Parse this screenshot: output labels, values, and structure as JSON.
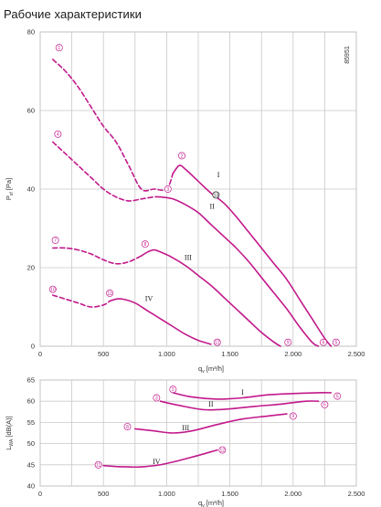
{
  "title": "Рабочие характеристики",
  "doc_number": "85951",
  "colors": {
    "curve": "#c2188b",
    "grid": "#c9c9c9",
    "text": "#333333"
  },
  "chart_data": [
    {
      "type": "line",
      "xlabel_main": "q",
      "xlabel_sub": "v",
      "xlabel_unit": "[m³/h]",
      "ylabel_main": "P",
      "ylabel_sub": "sf",
      "ylabel_unit": "[Pa]",
      "xlim": [
        0,
        2500
      ],
      "ylim": [
        0,
        80
      ],
      "x_ticks": [
        "0",
        "500",
        "1.000",
        "1.500",
        "2.000",
        "2.500"
      ],
      "y_ticks": [
        "0",
        "20",
        "40",
        "60",
        "80"
      ],
      "grid": true,
      "series": [
        {
          "name": "I",
          "style": "solid",
          "x": [
            1050,
            1100,
            1150,
            1250,
            1350,
            1450,
            1550,
            1650,
            1750,
            1850,
            1950,
            2050,
            2150,
            2250,
            2300
          ],
          "y": [
            44,
            46,
            45,
            42,
            39,
            36.5,
            33,
            29,
            25,
            21,
            17,
            12,
            7,
            2,
            0
          ]
        },
        {
          "name": "I-ext",
          "style": "dash",
          "x": [
            100,
            200,
            300,
            400,
            500,
            600,
            700,
            800,
            900,
            1000,
            1050
          ],
          "y": [
            73,
            70,
            66,
            61,
            56,
            52,
            46,
            40,
            40,
            40,
            44
          ]
        },
        {
          "name": "II",
          "style": "solid",
          "x": [
            950,
            1050,
            1150,
            1250,
            1350,
            1450,
            1550,
            1650,
            1750,
            1850,
            1950,
            2050,
            2150,
            2200
          ],
          "y": [
            38,
            37.5,
            36,
            34,
            31,
            28,
            25,
            21.5,
            17.5,
            13.5,
            9.5,
            5,
            1,
            0
          ]
        },
        {
          "name": "II-ext",
          "style": "dash",
          "x": [
            100,
            200,
            300,
            400,
            500,
            600,
            700,
            800,
            900,
            950
          ],
          "y": [
            52,
            49,
            46,
            43,
            40,
            38,
            37,
            37.5,
            38,
            38
          ]
        },
        {
          "name": "III",
          "style": "solid",
          "x": [
            800,
            850,
            900,
            950,
            1050,
            1150,
            1250,
            1350,
            1450,
            1550,
            1650,
            1750,
            1850,
            1900
          ],
          "y": [
            23,
            24,
            24.5,
            24,
            22.5,
            20.5,
            18,
            15.5,
            12.5,
            9.5,
            6.5,
            3.5,
            1,
            0
          ]
        },
        {
          "name": "III-ext",
          "style": "dash",
          "x": [
            100,
            200,
            300,
            400,
            500,
            600,
            700,
            800
          ],
          "y": [
            25,
            25,
            24.5,
            23.5,
            22,
            21,
            21.5,
            23
          ]
        },
        {
          "name": "IV",
          "style": "solid",
          "x": [
            550,
            600,
            650,
            750,
            850,
            950,
            1050,
            1150,
            1250,
            1350
          ],
          "y": [
            11.5,
            12,
            12,
            11,
            9,
            7,
            5,
            3,
            1.5,
            0.5
          ]
        },
        {
          "name": "IV-ext",
          "style": "dash",
          "x": [
            100,
            200,
            300,
            400,
            500,
            550
          ],
          "y": [
            13,
            12,
            11,
            10,
            10.5,
            11.5
          ]
        }
      ],
      "point_labels": [
        {
          "n": "1",
          "x": 150,
          "y": 76
        },
        {
          "n": "2",
          "x": 1120,
          "y": 48.5
        },
        {
          "n": "3",
          "x": 1010,
          "y": 40
        },
        {
          "n": "4",
          "x": 140,
          "y": 54
        },
        {
          "n": "5",
          "x": 2340,
          "y": 1
        },
        {
          "n": "6",
          "x": 2240,
          "y": 1
        },
        {
          "n": "7",
          "x": 120,
          "y": 27
        },
        {
          "n": "8",
          "x": 830,
          "y": 26
        },
        {
          "n": "9",
          "x": 1960,
          "y": 1
        },
        {
          "n": "10",
          "x": 100,
          "y": 14.5
        },
        {
          "n": "11",
          "x": 550,
          "y": 13.5
        },
        {
          "n": "12",
          "x": 1400,
          "y": 1
        },
        {
          "n": "13",
          "x": 1390,
          "y": 38.5,
          "dark": true
        }
      ],
      "roman_labels": [
        {
          "text": "I",
          "x": 1410,
          "y": 43
        },
        {
          "text": "II",
          "x": 1360,
          "y": 35
        },
        {
          "text": "III",
          "x": 1170,
          "y": 22
        },
        {
          "text": "IV",
          "x": 860,
          "y": 11.5
        }
      ]
    },
    {
      "type": "line",
      "xlabel_main": "q",
      "xlabel_sub": "v",
      "xlabel_unit": "[m³/h]",
      "ylabel_main": "L",
      "ylabel_sub": "WA",
      "ylabel_unit": "[dB(A)]",
      "xlim": [
        0,
        2500
      ],
      "ylim": [
        40,
        65
      ],
      "x_ticks": [
        "0",
        "500",
        "1.000",
        "1.500",
        "2.000",
        "2.500"
      ],
      "y_ticks": [
        "40",
        "45",
        "50",
        "55",
        "60",
        "65"
      ],
      "grid": true,
      "series": [
        {
          "name": "I",
          "style": "solid",
          "x": [
            1050,
            1200,
            1400,
            1600,
            1800,
            2000,
            2200,
            2300
          ],
          "y": [
            62,
            61,
            60.5,
            60.8,
            61.5,
            61.8,
            62,
            62
          ]
        },
        {
          "name": "II",
          "style": "solid",
          "x": [
            950,
            1100,
            1300,
            1500,
            1700,
            1900,
            2100,
            2200
          ],
          "y": [
            60,
            59,
            58,
            58.2,
            58.8,
            59.3,
            60,
            60
          ]
        },
        {
          "name": "III",
          "style": "solid",
          "x": [
            750,
            900,
            1050,
            1200,
            1400,
            1600,
            1800,
            1950
          ],
          "y": [
            53.5,
            53,
            52.5,
            53,
            54.5,
            55.8,
            56.5,
            57
          ]
        },
        {
          "name": "IV",
          "style": "solid",
          "x": [
            500,
            600,
            700,
            800,
            900,
            1000,
            1200,
            1400
          ],
          "y": [
            44.8,
            44.6,
            44.5,
            44.5,
            44.8,
            45.3,
            46.8,
            48.5
          ]
        }
      ],
      "point_labels": [
        {
          "n": "2",
          "x": 1050,
          "y": 62.8
        },
        {
          "n": "3",
          "x": 920,
          "y": 60.8
        },
        {
          "n": "5",
          "x": 2350,
          "y": 61.2
        },
        {
          "n": "6",
          "x": 2250,
          "y": 59.2
        },
        {
          "n": "8",
          "x": 690,
          "y": 54
        },
        {
          "n": "9",
          "x": 2000,
          "y": 56.5
        },
        {
          "n": "11",
          "x": 460,
          "y": 45
        },
        {
          "n": "12",
          "x": 1440,
          "y": 48.5
        }
      ],
      "roman_labels": [
        {
          "text": "I",
          "x": 1600,
          "y": 61.5
        },
        {
          "text": "II",
          "x": 1350,
          "y": 58.8
        },
        {
          "text": "III",
          "x": 1150,
          "y": 53.2
        },
        {
          "text": "IV",
          "x": 920,
          "y": 45.2
        }
      ]
    }
  ]
}
